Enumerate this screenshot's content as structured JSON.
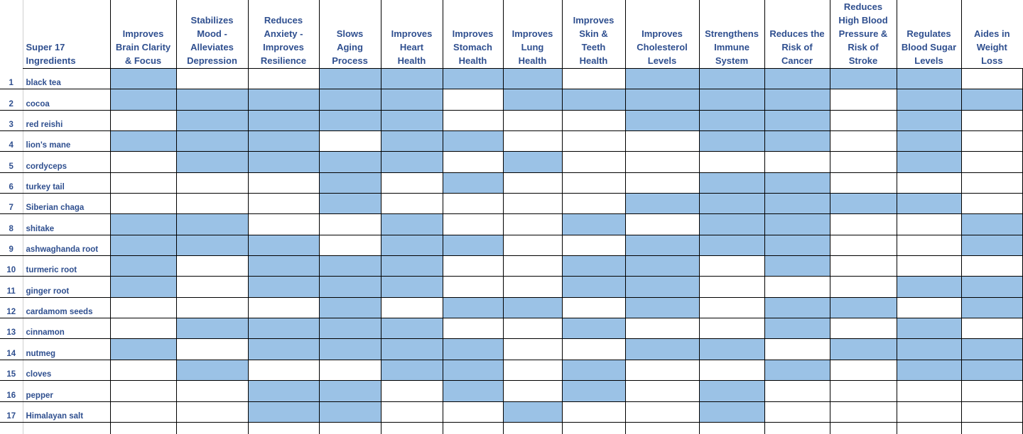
{
  "sheet": {
    "ingredient_header": "Super 17\nIngredients",
    "fill_color": "#9bc2e6",
    "text_color": "#2f4f8f",
    "benefits": [
      "Improves\nBrain Clarity\n& Focus",
      "Stabilizes\nMood -\nAlleviates\nDepression",
      "Reduces\nAnxiety -\nImproves\nResilience",
      "Slows\nAging\nProcess",
      "Improves\nHeart\nHealth",
      "Improves\nStomach\nHealth",
      "Improves\nLung\nHealth",
      "Improves\nSkin &\nTeeth\nHealth",
      "Improves\nCholesterol\nLevels",
      "Strengthens\nImmune\nSystem",
      "Reduces the\nRisk of\nCancer",
      "Reduces\nHigh Blood\nPressure &\nRisk of\nStroke",
      "Regulates\nBlood Sugar\nLevels",
      "Aides in\nWeight\nLoss"
    ],
    "rows": [
      {
        "num": "1",
        "name": "black tea",
        "marks": [
          1,
          0,
          0,
          1,
          1,
          1,
          1,
          0,
          1,
          1,
          1,
          1,
          1,
          0
        ]
      },
      {
        "num": "2",
        "name": "cocoa",
        "marks": [
          1,
          1,
          1,
          1,
          1,
          0,
          1,
          1,
          1,
          1,
          1,
          0,
          1,
          1
        ]
      },
      {
        "num": "3",
        "name": "red reishi",
        "marks": [
          0,
          1,
          1,
          1,
          1,
          0,
          0,
          0,
          1,
          1,
          1,
          0,
          1,
          0
        ]
      },
      {
        "num": "4",
        "name": "lion's mane",
        "marks": [
          1,
          1,
          1,
          0,
          1,
          1,
          0,
          0,
          0,
          1,
          1,
          0,
          1,
          0
        ]
      },
      {
        "num": "5",
        "name": "cordyceps",
        "marks": [
          0,
          1,
          1,
          1,
          1,
          0,
          1,
          0,
          0,
          0,
          0,
          0,
          1,
          0
        ]
      },
      {
        "num": "6",
        "name": "turkey tail",
        "marks": [
          0,
          0,
          0,
          1,
          0,
          1,
          0,
          0,
          0,
          1,
          1,
          0,
          0,
          0
        ]
      },
      {
        "num": "7",
        "name": "Siberian chaga",
        "marks": [
          0,
          0,
          0,
          1,
          0,
          0,
          0,
          0,
          1,
          1,
          1,
          1,
          1,
          0
        ]
      },
      {
        "num": "8",
        "name": "shitake",
        "marks": [
          1,
          1,
          0,
          0,
          1,
          0,
          0,
          1,
          0,
          1,
          1,
          0,
          0,
          1
        ]
      },
      {
        "num": "9",
        "name": "ashwaghanda root",
        "marks": [
          1,
          1,
          1,
          0,
          1,
          1,
          0,
          0,
          1,
          1,
          1,
          0,
          0,
          1
        ]
      },
      {
        "num": "10",
        "name": "turmeric root",
        "marks": [
          1,
          0,
          1,
          1,
          1,
          0,
          0,
          1,
          1,
          0,
          1,
          0,
          0,
          0
        ]
      },
      {
        "num": "11",
        "name": "ginger root",
        "marks": [
          1,
          0,
          1,
          1,
          1,
          0,
          0,
          1,
          1,
          0,
          0,
          0,
          1,
          1
        ]
      },
      {
        "num": "12",
        "name": "cardamom seeds",
        "marks": [
          0,
          0,
          0,
          1,
          0,
          1,
          1,
          0,
          1,
          0,
          1,
          1,
          0,
          1
        ]
      },
      {
        "num": "13",
        "name": "cinnamon",
        "marks": [
          0,
          1,
          1,
          1,
          1,
          0,
          0,
          1,
          0,
          0,
          1,
          0,
          1,
          0
        ]
      },
      {
        "num": "14",
        "name": "nutmeg",
        "marks": [
          1,
          0,
          1,
          1,
          1,
          1,
          0,
          0,
          1,
          1,
          0,
          1,
          1,
          1
        ]
      },
      {
        "num": "15",
        "name": "cloves",
        "marks": [
          0,
          1,
          0,
          0,
          1,
          1,
          0,
          1,
          0,
          0,
          1,
          0,
          1,
          1
        ]
      },
      {
        "num": "16",
        "name": "pepper",
        "marks": [
          0,
          0,
          1,
          1,
          0,
          1,
          0,
          1,
          0,
          1,
          0,
          0,
          0,
          0
        ]
      },
      {
        "num": "17",
        "name": "Himalayan salt",
        "marks": [
          0,
          0,
          1,
          1,
          0,
          0,
          1,
          0,
          0,
          1,
          0,
          0,
          0,
          0
        ]
      }
    ]
  }
}
